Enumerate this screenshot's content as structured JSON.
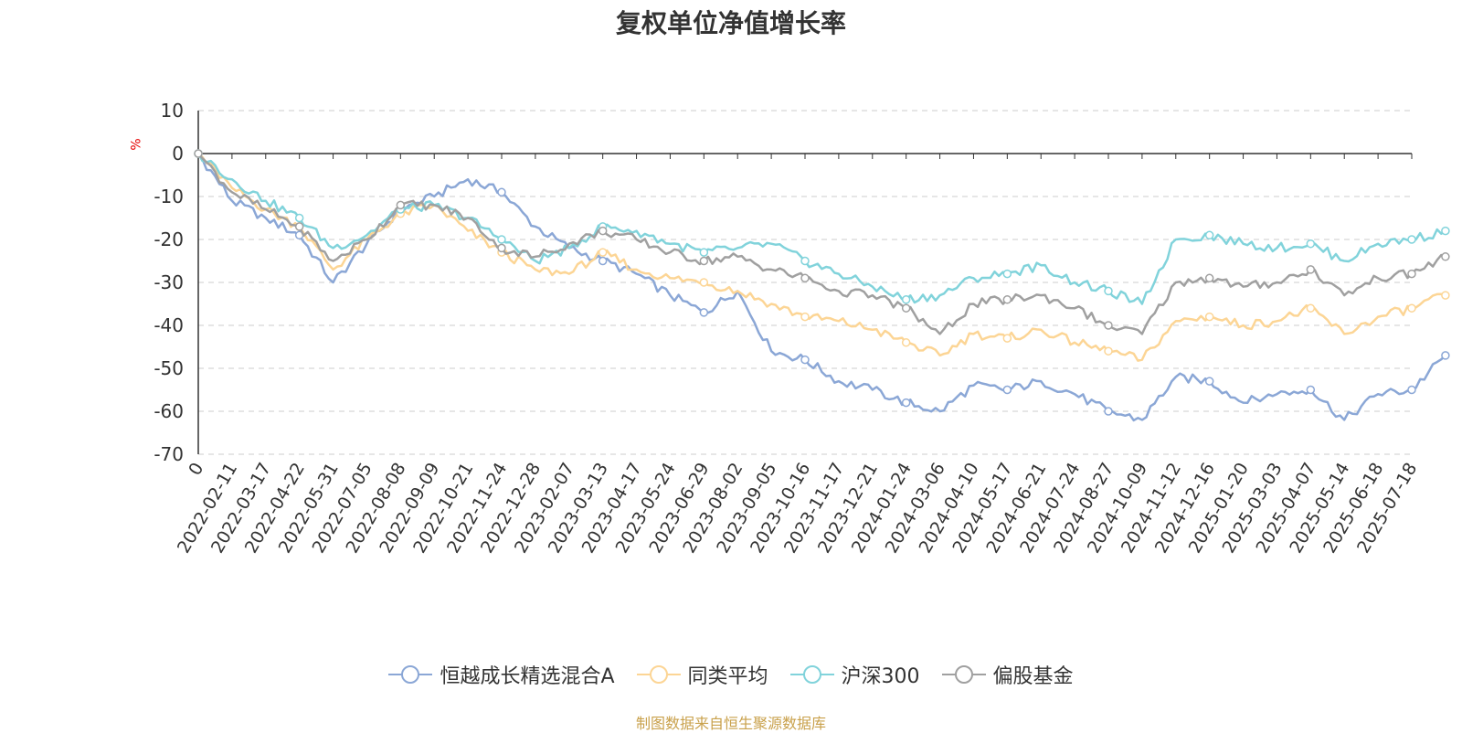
{
  "chart_data": {
    "type": "line",
    "title": "复权单位净值增长率",
    "ylabel": "%",
    "ylim": [
      -70,
      10
    ],
    "yticks": [
      10,
      0,
      -10,
      -20,
      -30,
      -40,
      -50,
      -60,
      -70
    ],
    "xticks": [
      "0",
      "2022-02-11",
      "2022-03-17",
      "2022-04-22",
      "2022-05-31",
      "2022-07-05",
      "2022-08-08",
      "2022-09-09",
      "2022-10-21",
      "2022-11-24",
      "2022-12-28",
      "2023-02-07",
      "2023-03-13",
      "2023-04-17",
      "2023-05-24",
      "2023-06-29",
      "2023-08-02",
      "2023-09-05",
      "2023-10-16",
      "2023-11-17",
      "2023-12-21",
      "2024-01-24",
      "2024-03-06",
      "2024-04-10",
      "2024-05-17",
      "2024-06-21",
      "2024-07-24",
      "2024-08-27",
      "2024-10-09",
      "2024-11-12",
      "2024-12-16",
      "2025-01-20",
      "2025-03-03",
      "2025-04-07",
      "2025-05-14",
      "2025-06-18",
      "2025-07-18"
    ],
    "grid": true,
    "legend_position": "bottom-center",
    "series": [
      {
        "name": "恒越成长精选混合A",
        "color": "#8ba7d6",
        "values": [
          0,
          -11,
          -15,
          -19,
          -30,
          -21,
          -13,
          -10,
          -6,
          -9,
          -17,
          -22,
          -25,
          -28,
          -33,
          -37,
          -32,
          -46,
          -48,
          -53,
          -55,
          -58,
          -60,
          -54,
          -55,
          -53,
          -56,
          -60,
          -62,
          -52,
          -53,
          -58,
          -56,
          -55,
          -62,
          -56,
          -55,
          -47
        ]
      },
      {
        "name": "同类平均",
        "color": "#fcd595",
        "values": [
          0,
          -8,
          -13,
          -17,
          -27,
          -20,
          -14,
          -12,
          -18,
          -23,
          -27,
          -28,
          -23,
          -27,
          -29,
          -30,
          -32,
          -35,
          -38,
          -39,
          -41,
          -44,
          -47,
          -42,
          -43,
          -41,
          -44,
          -46,
          -48,
          -39,
          -38,
          -40,
          -39,
          -36,
          -42,
          -38,
          -36,
          -33
        ]
      },
      {
        "name": "沪深300",
        "color": "#81d3db",
        "values": [
          0,
          -6,
          -11,
          -15,
          -22,
          -19,
          -13,
          -12,
          -15,
          -20,
          -25,
          -22,
          -17,
          -18,
          -21,
          -23,
          -22,
          -21,
          -25,
          -28,
          -31,
          -34,
          -33,
          -29,
          -28,
          -26,
          -30,
          -32,
          -35,
          -20,
          -19,
          -21,
          -22,
          -21,
          -25,
          -21,
          -20,
          -18
        ]
      },
      {
        "name": "偏股基金",
        "color": "#a0a0a0",
        "values": [
          0,
          -9,
          -13,
          -17,
          -25,
          -20,
          -12,
          -12,
          -15,
          -22,
          -24,
          -21,
          -18,
          -20,
          -23,
          -25,
          -24,
          -27,
          -29,
          -32,
          -33,
          -36,
          -42,
          -35,
          -34,
          -33,
          -36,
          -40,
          -42,
          -30,
          -29,
          -31,
          -30,
          -27,
          -33,
          -29,
          -28,
          -24
        ]
      }
    ]
  },
  "footer": {
    "source": "制图数据来自恒生聚源数据库"
  }
}
